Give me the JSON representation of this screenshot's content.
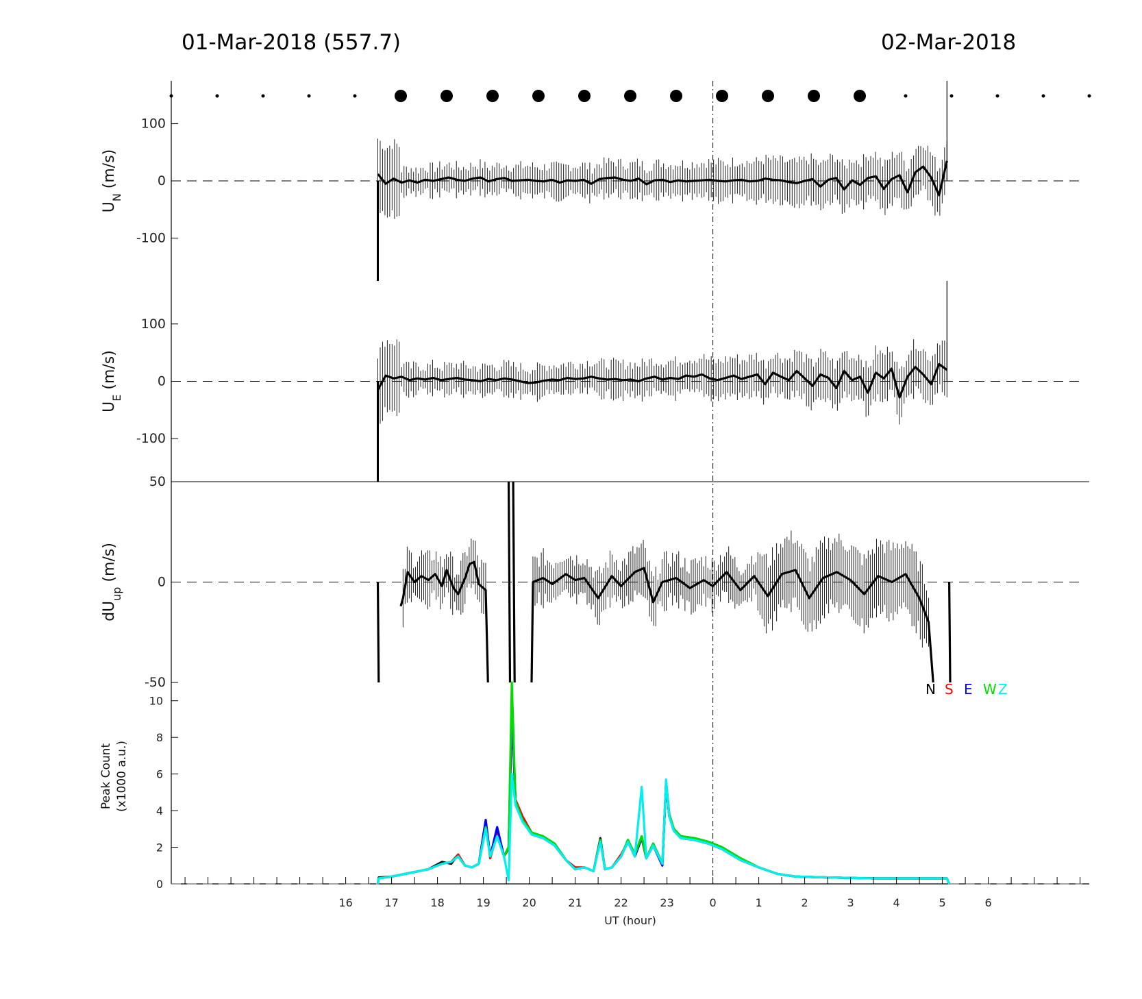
{
  "header": {
    "left_date": "01-Mar-2018 (557.7)",
    "right_date": "02-Mar-2018"
  },
  "chart_data": [
    {
      "id": "un",
      "type": "line",
      "ylabel": "U",
      "ylabel_sub": "N",
      "ylabel_unit": " (m/s)",
      "ylim": [
        -175,
        175
      ],
      "yticks": [
        100,
        0,
        -100
      ],
      "x_range_hours": [
        12.2,
        32.2
      ],
      "data_start_hours": 16.7,
      "data_end_hours": 29.1,
      "series": [
        {
          "values": [
            12,
            -5,
            4,
            -3,
            1,
            -3,
            2,
            0,
            3,
            6,
            2,
            0,
            4,
            6,
            -1,
            3,
            5,
            0,
            1,
            2,
            0,
            -1,
            2,
            -3,
            1,
            0,
            2,
            -5,
            3,
            5,
            6,
            2,
            0,
            4,
            -6,
            1,
            2,
            -2,
            1,
            -1,
            0,
            1,
            2,
            0,
            -1,
            1,
            2,
            -1,
            0,
            4,
            2,
            1,
            -2,
            -4,
            0,
            3,
            -10,
            2,
            5,
            -15,
            1,
            -7,
            5,
            8,
            -14,
            3,
            10,
            -20,
            15,
            25,
            6,
            -25,
            35
          ]
        }
      ]
    },
    {
      "id": "ue",
      "type": "line",
      "ylabel": "U",
      "ylabel_sub": "E",
      "ylabel_unit": " (m/s)",
      "ylim": [
        -175,
        175
      ],
      "yticks": [
        100,
        0,
        -100
      ],
      "x_range_hours": [
        12.2,
        32.2
      ],
      "data_start_hours": 16.7,
      "data_end_hours": 29.1,
      "series": [
        {
          "values": [
            -15,
            10,
            5,
            8,
            2,
            5,
            3,
            6,
            2,
            4,
            6,
            3,
            2,
            0,
            4,
            2,
            5,
            3,
            0,
            -3,
            -2,
            1,
            3,
            2,
            6,
            4,
            5,
            8,
            5,
            3,
            4,
            2,
            3,
            0,
            5,
            8,
            3,
            6,
            4,
            10,
            8,
            12,
            5,
            2,
            6,
            10,
            4,
            8,
            12,
            -5,
            15,
            8,
            2,
            18,
            5,
            -8,
            12,
            6,
            -12,
            18,
            2,
            8,
            -20,
            15,
            5,
            22,
            -28,
            8,
            25,
            12,
            -5,
            30,
            20
          ]
        }
      ]
    },
    {
      "id": "dup",
      "type": "line",
      "ylabel": "dU",
      "ylabel_sub": "up",
      "ylabel_unit": " (m/s)",
      "ylim": [
        -50,
        50
      ],
      "yticks": [
        50,
        0,
        -50
      ],
      "x_range_hours": [
        12.2,
        32.2
      ],
      "segments": [
        {
          "x": [
            16.7,
            16.72
          ],
          "values": [
            0,
            -50
          ]
        },
        {
          "x": [
            17.2,
            17.25,
            17.35,
            17.5,
            17.65,
            17.8,
            17.95,
            18.1,
            18.2,
            18.35,
            18.45,
            18.6,
            18.7,
            18.8,
            18.9,
            19.05,
            19.1
          ],
          "values": [
            -12,
            -8,
            5,
            0,
            3,
            1,
            4,
            -2,
            6,
            -3,
            -6,
            2,
            9,
            10,
            -1,
            -4,
            -50
          ]
        },
        {
          "x": [
            19.55,
            19.58
          ],
          "values": [
            50,
            -50
          ]
        },
        {
          "x": [
            19.65,
            19.68
          ],
          "values": [
            50,
            -50
          ]
        },
        {
          "x": [
            20.05,
            20.08,
            20.3,
            20.5,
            20.8,
            21.0,
            21.2,
            21.5,
            21.8,
            22.0,
            22.3,
            22.5,
            22.7,
            22.9,
            23.2,
            23.5,
            23.8,
            24.0,
            24.3,
            24.6,
            24.9,
            25.2,
            25.5,
            25.8,
            26.1,
            26.4,
            26.7,
            27.0,
            27.3,
            27.6,
            27.9,
            28.2,
            28.5,
            28.7,
            28.8
          ],
          "values": [
            -50,
            0,
            2,
            -1,
            4,
            1,
            2,
            -8,
            3,
            -2,
            5,
            7,
            -10,
            0,
            2,
            -3,
            1,
            -2,
            5,
            -4,
            3,
            -7,
            4,
            6,
            -8,
            2,
            5,
            1,
            -6,
            3,
            0,
            4,
            -8,
            -20,
            -50
          ]
        },
        {
          "x": [
            29.15,
            29.17
          ],
          "values": [
            0,
            -50
          ]
        }
      ]
    },
    {
      "id": "counts",
      "type": "line",
      "ylabel": "Peak Count",
      "ylabel2": "(x1000 a.u.)",
      "ylim": [
        0,
        11
      ],
      "yticks": [
        10,
        8,
        6,
        4,
        2,
        0
      ],
      "xlabel": "UT (hour)",
      "xticks": [
        "16",
        "17",
        "18",
        "19",
        "20",
        "21",
        "22",
        "23",
        "0",
        "1",
        "2",
        "3",
        "4",
        "5",
        "6"
      ],
      "legend": [
        {
          "label": "N",
          "color": "#000000"
        },
        {
          "label": "S",
          "color": "#ff0000"
        },
        {
          "label": "E",
          "color": "#0000ff"
        },
        {
          "label": "W",
          "color": "#00dd00"
        },
        {
          "label": "Z",
          "color": "#00f0f0"
        }
      ],
      "series_x": [
        16.7,
        16.72,
        17.0,
        17.4,
        17.8,
        18.1,
        18.3,
        18.45,
        18.6,
        18.75,
        18.9,
        19.05,
        19.15,
        19.3,
        19.45,
        19.55,
        19.62,
        19.7,
        19.85,
        20.05,
        20.3,
        20.55,
        20.8,
        21.0,
        21.2,
        21.4,
        21.55,
        21.65,
        21.8,
        22.0,
        22.15,
        22.3,
        22.45,
        22.55,
        22.7,
        22.9,
        22.98,
        23.05,
        23.15,
        23.3,
        23.6,
        23.9,
        24.2,
        24.6,
        25.0,
        25.4,
        25.8,
        26.5,
        27.5,
        28.5,
        29.1,
        29.15
      ],
      "series": [
        {
          "name": "N",
          "color": "#000000",
          "values": [
            0,
            0.35,
            0.4,
            0.6,
            0.8,
            1.2,
            1.1,
            1.6,
            1.0,
            0.9,
            1.1,
            3.2,
            1.5,
            2.8,
            1.5,
            2.0,
            9.8,
            4.5,
            3.6,
            2.8,
            2.6,
            2.2,
            1.3,
            0.8,
            0.9,
            0.7,
            2.5,
            0.8,
            0.9,
            1.5,
            2.4,
            1.6,
            2.6,
            1.4,
            2.2,
            1.1,
            5.6,
            3.8,
            3.0,
            2.6,
            2.5,
            2.3,
            2.0,
            1.4,
            0.9,
            0.55,
            0.4,
            0.35,
            0.3,
            0.3,
            0.3,
            0
          ]
        },
        {
          "name": "S",
          "color": "#ff0000",
          "values": [
            0,
            0.3,
            0.4,
            0.6,
            0.8,
            1.1,
            1.2,
            1.6,
            1.0,
            0.9,
            1.1,
            3.2,
            1.4,
            2.7,
            1.5,
            1.9,
            9.5,
            4.6,
            3.7,
            2.8,
            2.6,
            2.1,
            1.3,
            0.9,
            0.9,
            0.7,
            2.4,
            0.8,
            0.9,
            1.6,
            2.3,
            1.5,
            2.5,
            1.4,
            2.1,
            1.1,
            5.5,
            3.7,
            3.0,
            2.5,
            2.4,
            2.2,
            1.9,
            1.3,
            0.9,
            0.55,
            0.4,
            0.35,
            0.3,
            0.3,
            0.3,
            0
          ]
        },
        {
          "name": "E",
          "color": "#0000ff",
          "values": [
            0,
            0.3,
            0.4,
            0.6,
            0.8,
            1.1,
            1.2,
            1.5,
            1.0,
            0.9,
            1.1,
            3.5,
            1.5,
            3.1,
            1.5,
            2.0,
            9.6,
            4.5,
            3.5,
            2.7,
            2.5,
            2.1,
            1.3,
            0.8,
            0.9,
            0.7,
            2.4,
            0.8,
            0.9,
            1.5,
            2.3,
            1.5,
            2.5,
            1.4,
            2.1,
            1.0,
            5.5,
            3.7,
            2.9,
            2.5,
            2.4,
            2.2,
            1.9,
            1.3,
            0.9,
            0.55,
            0.4,
            0.35,
            0.3,
            0.3,
            0.3,
            0
          ]
        },
        {
          "name": "W",
          "color": "#00dd00",
          "values": [
            0,
            0.3,
            0.4,
            0.6,
            0.8,
            1.1,
            1.2,
            1.5,
            1.0,
            0.9,
            1.1,
            3.1,
            1.5,
            2.6,
            1.5,
            2.0,
            11.0,
            4.5,
            3.5,
            2.8,
            2.6,
            2.2,
            1.3,
            0.8,
            0.9,
            0.7,
            2.4,
            0.8,
            0.9,
            1.5,
            2.4,
            1.6,
            2.6,
            1.4,
            2.2,
            1.1,
            5.6,
            3.8,
            3.0,
            2.6,
            2.5,
            2.3,
            2.0,
            1.4,
            0.9,
            0.55,
            0.4,
            0.35,
            0.3,
            0.3,
            0.3,
            0
          ]
        },
        {
          "name": "Z",
          "color": "#00f0f0",
          "values": [
            0,
            0.3,
            0.4,
            0.6,
            0.8,
            1.1,
            1.2,
            1.5,
            1.0,
            0.9,
            1.1,
            3.0,
            1.5,
            2.6,
            1.5,
            0.2,
            6.0,
            4.3,
            3.4,
            2.7,
            2.5,
            2.1,
            1.3,
            0.8,
            0.9,
            0.7,
            2.3,
            0.8,
            0.9,
            1.5,
            2.3,
            1.5,
            5.3,
            1.4,
            2.1,
            1.1,
            5.7,
            3.7,
            2.9,
            2.5,
            2.4,
            2.2,
            1.9,
            1.3,
            0.9,
            0.55,
            0.4,
            0.35,
            0.3,
            0.3,
            0.3,
            0
          ]
        }
      ]
    }
  ],
  "markers": {
    "hours": [
      12.2,
      13.2,
      14.2,
      15.2,
      16.2,
      17.2,
      18.2,
      19.2,
      20.2,
      21.2,
      22.2,
      23.2,
      24.2,
      25.2,
      26.2,
      27.2,
      28.2,
      29.2,
      30.2,
      31.2,
      32.2
    ],
    "large_from": 17.2,
    "large_to": 27.2
  },
  "midnight_hour": 24
}
